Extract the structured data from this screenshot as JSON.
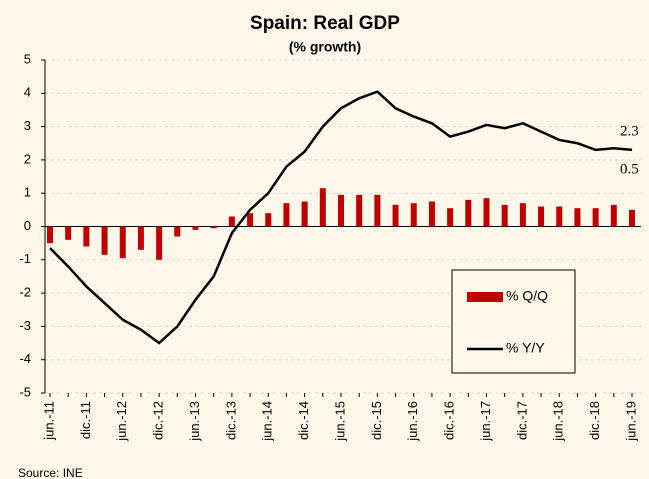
{
  "chart_data": {
    "type": "bar_line",
    "title": "Spain: Real GDP",
    "subtitle": "(% growth)",
    "categories": [
      "jun.-11",
      null,
      "dic.-11",
      null,
      "jun.-12",
      null,
      "dic.-12",
      null,
      "jun.-13",
      null,
      "dic.-13",
      null,
      "jun.-14",
      null,
      "dic.-14",
      null,
      "jun.-15",
      null,
      "dic.-15",
      null,
      "jun.-16",
      null,
      "dic.-16",
      null,
      "jun.-17",
      null,
      "dic.-17",
      null,
      "jun.-18",
      null,
      "dic.-18",
      null,
      "jun.-19"
    ],
    "series": [
      {
        "name": "% Q/Q",
        "type": "bar",
        "color": "#c00000",
        "values": [
          -0.5,
          -0.4,
          -0.6,
          -0.85,
          -0.95,
          -0.7,
          -1.0,
          -0.3,
          -0.1,
          -0.05,
          0.3,
          0.4,
          0.4,
          0.7,
          0.75,
          1.15,
          0.95,
          0.95,
          0.95,
          0.65,
          0.7,
          0.75,
          0.55,
          0.8,
          0.85,
          0.65,
          0.7,
          0.6,
          0.6,
          0.55,
          0.55,
          0.65,
          0.5
        ],
        "value_labels": [
          null,
          null,
          null,
          null,
          null,
          null,
          null,
          null,
          null,
          null,
          null,
          null,
          null,
          null,
          null,
          null,
          null,
          null,
          null,
          null,
          null,
          null,
          null,
          null,
          null,
          null,
          null,
          null,
          null,
          null,
          null,
          null,
          "0.5"
        ]
      },
      {
        "name": "% Y/Y",
        "type": "line",
        "color": "#000000",
        "values": [
          -0.65,
          -1.2,
          -1.8,
          -2.3,
          -2.8,
          -3.1,
          -3.5,
          -3.0,
          -2.2,
          -1.5,
          -0.2,
          0.5,
          1.0,
          1.8,
          2.25,
          3.0,
          3.55,
          3.85,
          4.05,
          3.55,
          3.3,
          3.1,
          2.7,
          2.85,
          3.05,
          2.95,
          3.1,
          2.85,
          2.6,
          2.5,
          2.3,
          2.35,
          2.3
        ],
        "value_labels": [
          null,
          null,
          null,
          null,
          null,
          null,
          null,
          null,
          null,
          null,
          null,
          null,
          null,
          null,
          null,
          null,
          null,
          null,
          null,
          null,
          null,
          null,
          null,
          null,
          null,
          null,
          null,
          null,
          null,
          null,
          null,
          null,
          "2.3"
        ]
      }
    ],
    "ylim": [
      -5,
      5
    ],
    "yticks": [
      -5,
      -4,
      -3,
      -2,
      -1,
      0,
      1,
      2,
      3,
      4,
      5
    ],
    "grid": true,
    "legend": "bottom-right",
    "source": "Source: INE"
  }
}
